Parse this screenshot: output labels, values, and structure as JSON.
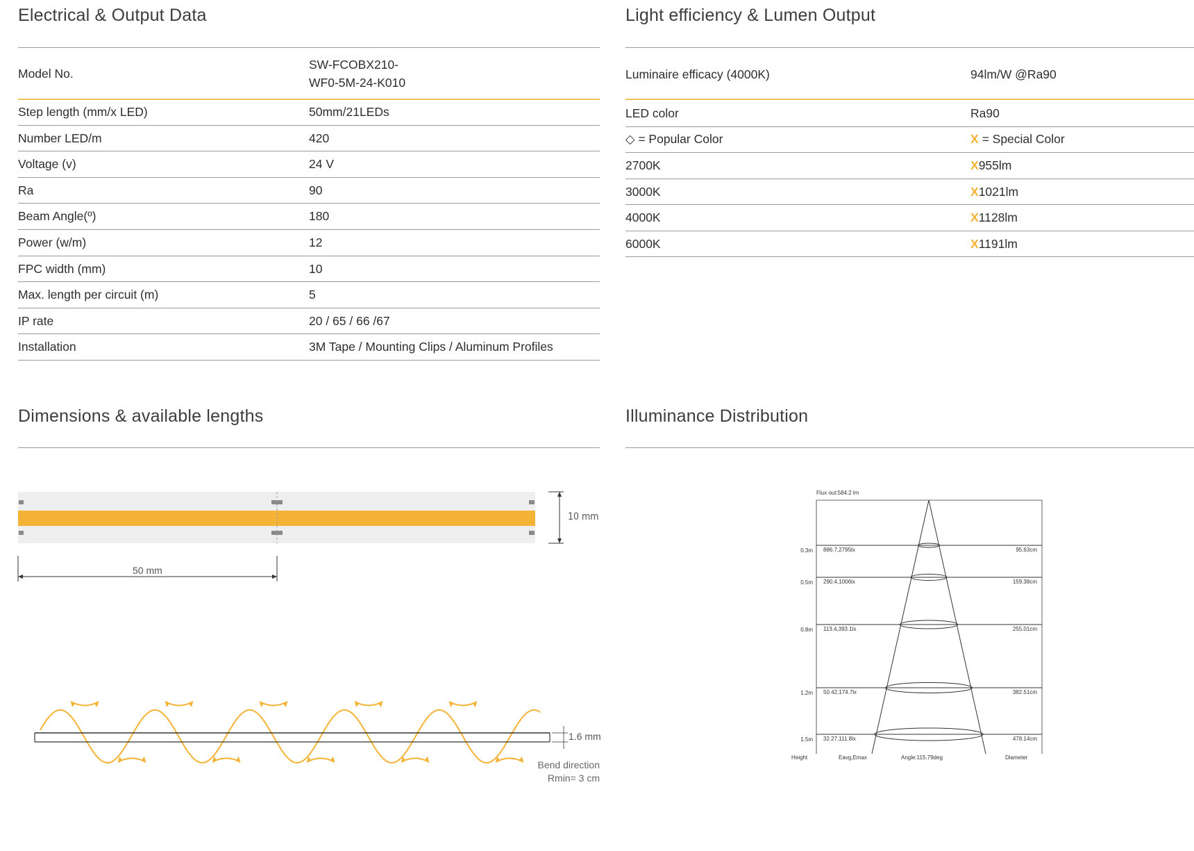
{
  "electrical": {
    "title": "Electrical & Output Data",
    "model_label": "Model No.",
    "model_value_line1": "SW-FCOBX210-",
    "model_value_line2": "WF0-5M-24-K010",
    "rows": [
      {
        "label": "Step length (mm/x LED)",
        "value": "50mm/21LEDs"
      },
      {
        "label": "Number LED/m",
        "value": "420"
      },
      {
        "label": "Voltage (v)",
        "value": "24 V"
      },
      {
        "label": "Ra",
        "value": "90"
      },
      {
        "label": "Beam Angle(º)",
        "value": "180"
      },
      {
        "label": "Power (w/m)",
        "value": "12"
      },
      {
        "label": "FPC width (mm)",
        "value": "10"
      },
      {
        "label": "Max. length per circuit (m)",
        "value": "5"
      },
      {
        "label": "IP rate",
        "value": "20 / 65 / 66 /67"
      },
      {
        "label": "Installation",
        "value": "3M Tape / Mounting Clips / Aluminum Profiles"
      }
    ]
  },
  "light": {
    "title": "Light efficiency & Lumen Output",
    "efficacy_label": "Luminaire efficacy (4000K)",
    "efficacy_value": "94lm/W @Ra90",
    "led_color_label": "LED color",
    "led_color_value": "Ra90",
    "popular_symbol": "◇",
    "popular_label": "= Popular Color",
    "special_symbol": "X",
    "special_label": "= Special Color",
    "rows": [
      {
        "label": "2700K",
        "value": "955lm"
      },
      {
        "label": "3000K",
        "value": "1021lm"
      },
      {
        "label": "4000K",
        "value": "1128lm"
      },
      {
        "label": "6000K",
        "value": "1191lm"
      }
    ]
  },
  "dimensions": {
    "title": "Dimensions & available lengths",
    "width_label": "10 mm",
    "step_label": "50 mm",
    "thickness_label": "1.6 mm",
    "bend_line1": "Bend direction",
    "bend_line2": "Rmin= 3 cm"
  },
  "illuminance": {
    "title": "Illuminance Distribution",
    "flux": "Flux out:584.2 lm",
    "rows": [
      {
        "height": "0.3m",
        "e": "886.7,2795lx",
        "d": "95.63cm"
      },
      {
        "height": "0.5m",
        "e": "290.4,1006lx",
        "d": "159.38cm"
      },
      {
        "height": "0.8m",
        "e": "113.4,393.1lx",
        "d": "255.01cm"
      },
      {
        "height": "1.2m",
        "e": "50.42,174.7lx",
        "d": "382.51cm"
      },
      {
        "height": "1.5m",
        "e": "32.27,111.8lx",
        "d": "478.14cm"
      }
    ],
    "footer_height": "Height",
    "footer_e": "Eavg,Emax",
    "footer_angle": "Angle:115.79deg",
    "footer_diameter": "Diameter"
  },
  "colors": {
    "accent": "#f5b335",
    "strip_bg": "#eeeeee",
    "rule": "#9a9a9a"
  }
}
